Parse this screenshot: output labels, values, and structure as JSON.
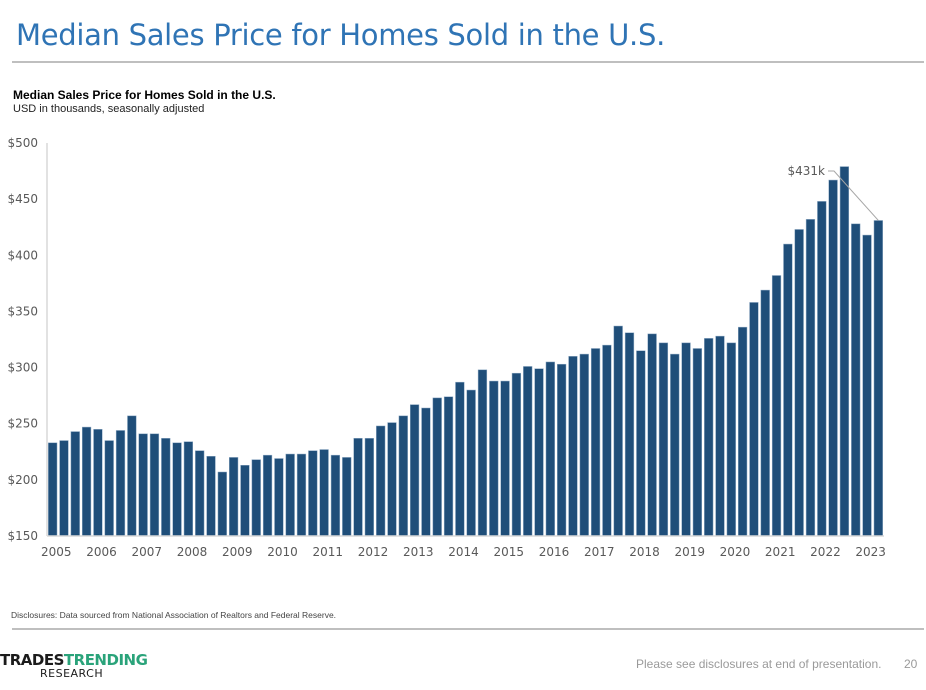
{
  "slide": {
    "title": "Median Sales Price for Homes Sold in the U.S.",
    "disclosure": "Disclosures: Data sourced from National Association of Realtors and Federal Reserve.",
    "footer_note": "Please see disclosures at end of presentation.",
    "page_number": "20",
    "logo": {
      "word1": "TRADES",
      "word2": "TRENDING",
      "word3": "RESEARCH"
    }
  },
  "colors": {
    "bar": "#1f4e79",
    "title": "#2f74b5",
    "axis": "#d9d9d9"
  },
  "chart_data": {
    "type": "bar",
    "title": "Median Sales Price for Homes Sold in the U.S.",
    "subtitle": "USD in thousands, seasonally adjusted",
    "xlabel": "",
    "ylabel": "",
    "ylim": [
      150,
      500
    ],
    "yticks": [
      150,
      200,
      250,
      300,
      350,
      400,
      450,
      500
    ],
    "ytick_labels": [
      "$150",
      "$200",
      "$250",
      "$300",
      "$350",
      "$400",
      "$450",
      "$500"
    ],
    "xtick_labels": [
      "2005",
      "2006",
      "2007",
      "2008",
      "2009",
      "2010",
      "2011",
      "2012",
      "2013",
      "2014",
      "2015",
      "2016",
      "2017",
      "2018",
      "2019",
      "2020",
      "2021",
      "2022",
      "2023"
    ],
    "grid": false,
    "frequency": "quarterly",
    "start": "2005 Q1",
    "values": [
      233,
      235,
      243,
      247,
      245,
      235,
      244,
      257,
      241,
      241,
      237,
      233,
      234,
      226,
      221,
      207,
      220,
      213,
      218,
      222,
      219,
      223,
      223,
      226,
      227,
      222,
      220,
      237,
      237,
      248,
      251,
      257,
      267,
      264,
      273,
      274,
      287,
      280,
      298,
      288,
      288,
      295,
      301,
      299,
      305,
      303,
      310,
      312,
      317,
      320,
      337,
      331,
      315,
      330,
      322,
      312,
      322,
      317,
      326,
      328,
      322,
      336,
      358,
      369,
      382,
      410,
      423,
      432,
      448,
      467,
      479,
      428,
      418,
      431
    ],
    "annotation": {
      "label": "$431k",
      "point_index": 73
    }
  }
}
